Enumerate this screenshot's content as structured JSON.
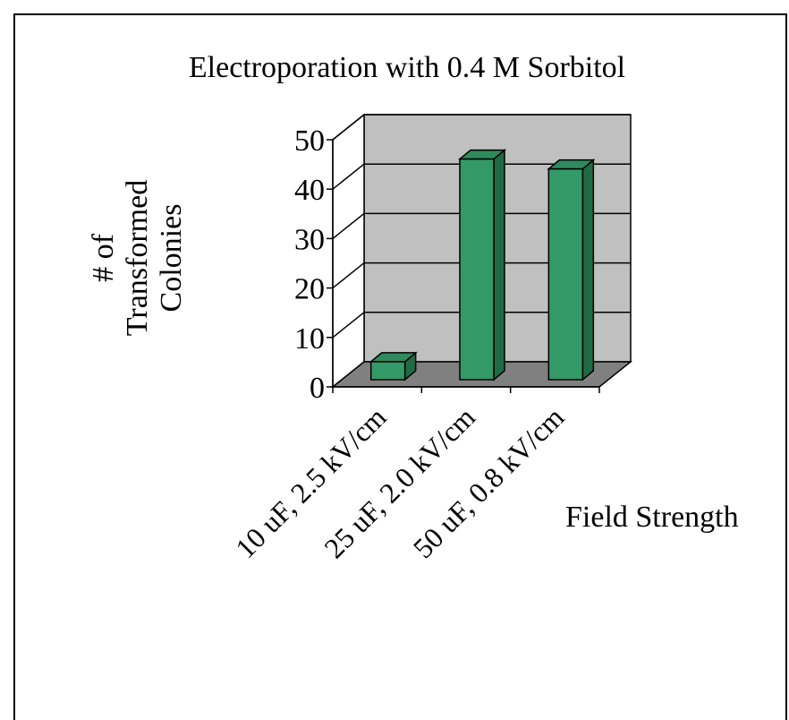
{
  "chart_data": {
    "type": "bar",
    "title": "Electroporation with 0.4 M Sorbitol",
    "ylabel_lines": [
      "# of",
      "Transformed",
      "Colonies"
    ],
    "xlabel": "Field Strength",
    "categories": [
      "10 uF, 2.5 kV/cm",
      "25 uF, 2.0 kV/cm",
      "50 uF, 0.8 kV/cm"
    ],
    "values": [
      4,
      45,
      43
    ],
    "ylim": [
      0,
      50
    ],
    "yticks": [
      "0",
      "10",
      "20",
      "30",
      "40",
      "50"
    ],
    "grid": true,
    "three_d": true,
    "colors": {
      "bar_front": "#339966",
      "bar_side": "#1f6b45",
      "bar_top": "#2f8a5c",
      "back_wall": "#c0c0c0",
      "floor": "#808080"
    }
  }
}
